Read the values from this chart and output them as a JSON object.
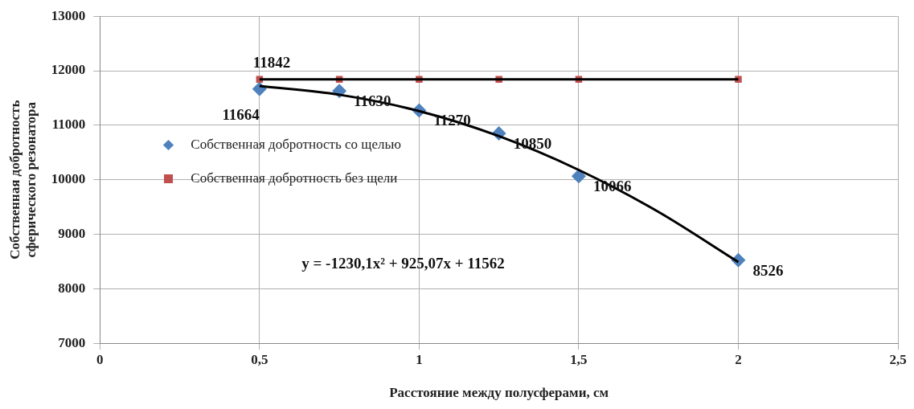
{
  "chart_data": {
    "type": "scatter",
    "xlabel": "Расстояние между полусферами, см",
    "ylabel": "Собственная добротность\nсферического резонатора",
    "xlim": [
      0,
      2.5
    ],
    "xticks": [
      0,
      {
        "value": 0.5,
        "label": "0,5"
      },
      1,
      {
        "value": 1.5,
        "label": "1,5"
      },
      2,
      {
        "value": 2.5,
        "label": "2,5"
      }
    ],
    "ylim": [
      7000,
      13000
    ],
    "yticks": [
      7000,
      8000,
      9000,
      10000,
      11000,
      12000,
      13000
    ],
    "grid": true,
    "legend": "left",
    "series": [
      {
        "name": "Собственная добротность со щелью",
        "color": "#4f81bd",
        "marker": "diamond",
        "x": [
          0.5,
          0.75,
          1,
          1.25,
          1.5,
          2
        ],
        "values": [
          11664,
          11630,
          11270,
          10850,
          10066,
          8526
        ],
        "value_labels": [
          "11664",
          "11630",
          "11270",
          "10850",
          "10066",
          "8526"
        ]
      },
      {
        "name": "Собственная добротность без щели",
        "color": "#c0504d",
        "marker": "square",
        "x": [
          0.5,
          0.75,
          1,
          1.25,
          1.5,
          2
        ],
        "values": [
          11842,
          11842,
          11842,
          11842,
          11842,
          11842
        ],
        "value_labels": [
          "11842",
          null,
          null,
          null,
          null,
          null
        ]
      },
      {
        "type": "line",
        "color": "#000000",
        "marker": "none",
        "x": [
          0.5,
          0.75,
          1,
          1.25,
          1.5,
          1.75,
          2
        ],
        "values": [
          11720,
          11560,
          11260,
          10800,
          10180,
          9410,
          8490
        ]
      },
      {
        "type": "line",
        "color": "#000000",
        "marker": "none",
        "x": [
          0.5,
          2
        ],
        "values": [
          11842,
          11842
        ]
      }
    ],
    "annotations": [
      "y = -1230,1x² + 925,07x + 11562"
    ]
  }
}
